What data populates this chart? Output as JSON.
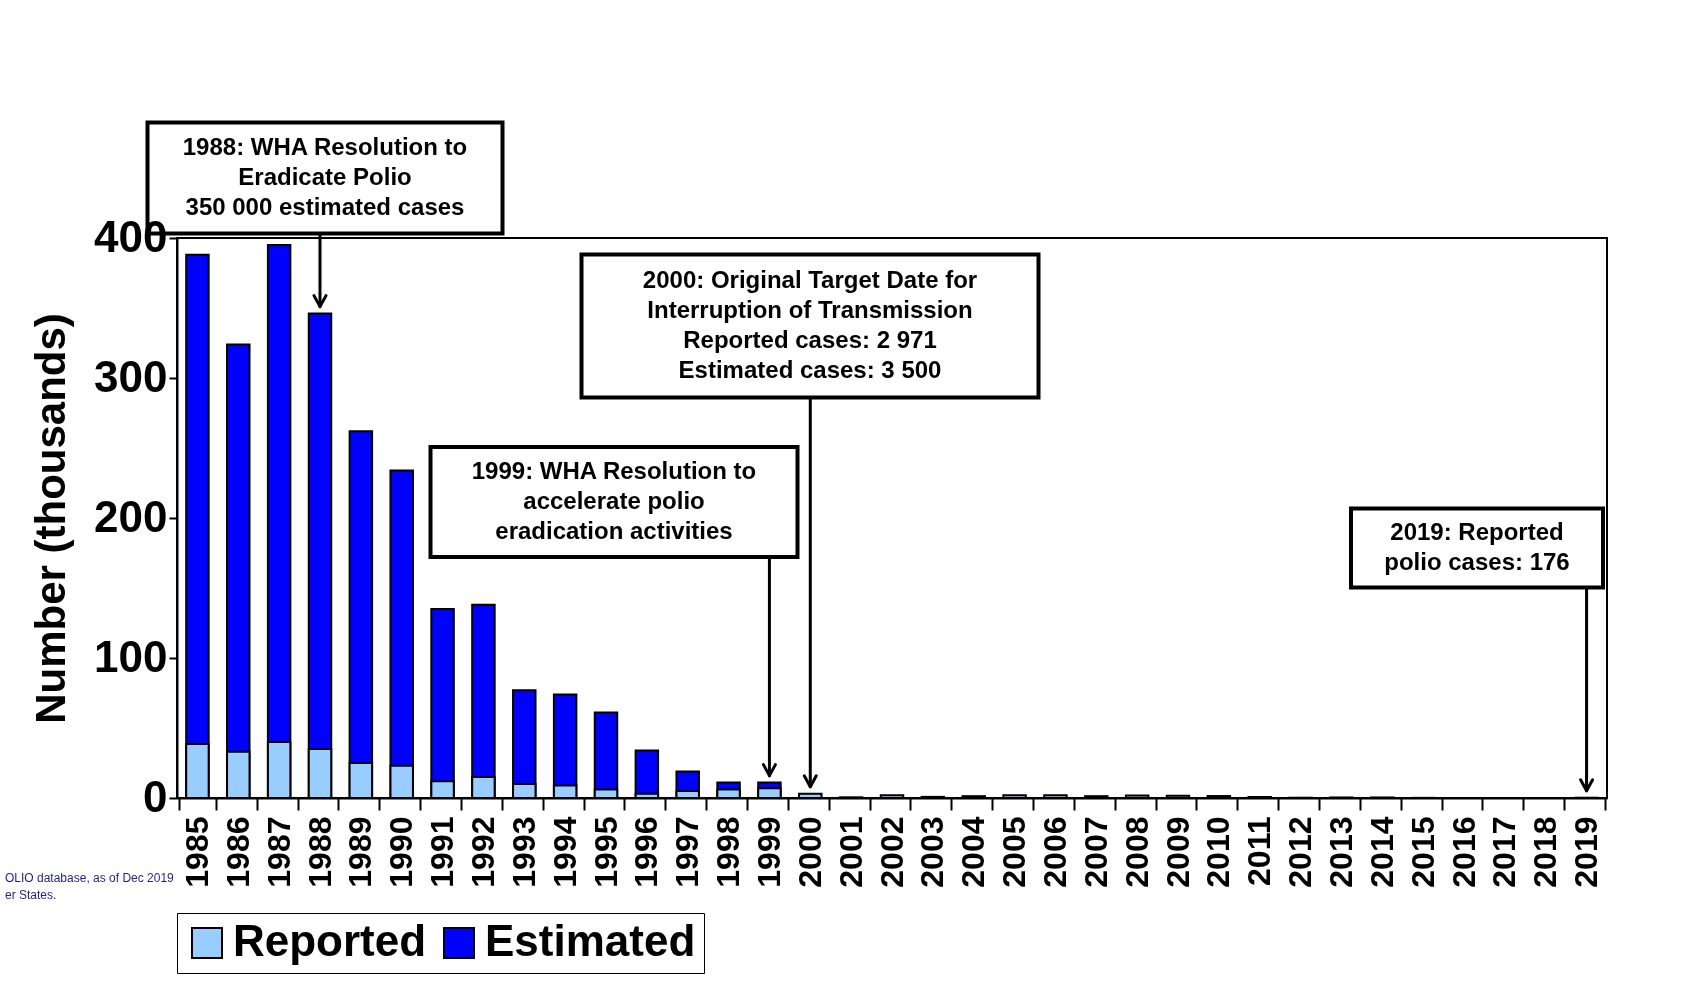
{
  "chart_data": {
    "type": "bar",
    "ylabel": "Number (thousands)",
    "categories": [
      "1985",
      "1986",
      "1987",
      "1988",
      "1989",
      "1990",
      "1991",
      "1992",
      "1993",
      "1994",
      "1995",
      "1996",
      "1997",
      "1998",
      "1999",
      "2000",
      "2001",
      "2002",
      "2003",
      "2004",
      "2005",
      "2006",
      "2007",
      "2008",
      "2009",
      "2010",
      "2011",
      "2012",
      "2013",
      "2014",
      "2015",
      "2016",
      "2017",
      "2018",
      "2019"
    ],
    "series": [
      {
        "name": "Reported",
        "color": "#99ccff",
        "values": [
          38.6,
          33,
          40,
          35,
          25,
          23,
          12,
          15,
          10,
          9,
          6,
          3,
          5,
          6,
          7,
          3,
          0.5,
          1.9,
          0.8,
          1.3,
          2.0,
          2.0,
          1.3,
          1.7,
          1.6,
          1.4,
          0.7,
          0.2,
          0.4,
          0.4,
          0.1,
          0,
          0,
          0,
          0.2
        ]
      },
      {
        "name": "Estimated",
        "color": "#0000ff",
        "values": [
          388,
          324,
          395,
          346,
          262,
          234,
          135,
          138,
          77,
          74,
          61,
          34,
          19,
          11,
          11,
          null,
          null,
          null,
          null,
          null,
          null,
          null,
          null,
          null,
          null,
          null,
          null,
          null,
          null,
          null,
          null,
          null,
          null,
          null,
          null
        ]
      }
    ],
    "ylim": [
      0,
      400
    ],
    "yticks": [
      0,
      100,
      200,
      300,
      400
    ],
    "grid": false,
    "legend": "bottom",
    "annotations": [
      {
        "text": "1988: WHA Resolution to\nEradicate Polio\n350 000 estimated cases",
        "x": "1988",
        "y": 346
      },
      {
        "text": "2000: Original Target Date for\nInterruption of Transmission\nReported cases:   2 971\nEstimated cases: 3 500",
        "x": "2000",
        "y": 3
      },
      {
        "text": "1999: WHA Resolution to\naccelerate polio\neradication activities",
        "x": "1999",
        "y": 11
      },
      {
        "text": "2019: Reported\npolio cases: 176",
        "x": "2019",
        "y": 0.2
      },
      "OLIO database, as of Dec 2019",
      "er States."
    ]
  }
}
